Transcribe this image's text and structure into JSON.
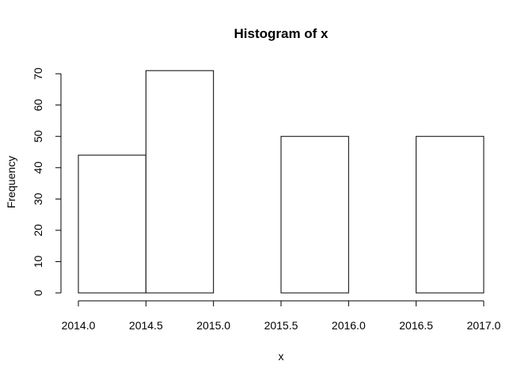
{
  "chart_data": {
    "type": "bar",
    "title": "Histogram of x",
    "xlabel": "x",
    "ylabel": "Frequency",
    "bins": [
      {
        "start": 2014.0,
        "end": 2014.5,
        "count": 44
      },
      {
        "start": 2014.5,
        "end": 2015.0,
        "count": 71
      },
      {
        "start": 2015.0,
        "end": 2015.5,
        "count": 0
      },
      {
        "start": 2015.5,
        "end": 2016.0,
        "count": 50
      },
      {
        "start": 2016.0,
        "end": 2016.5,
        "count": 0
      },
      {
        "start": 2016.5,
        "end": 2017.0,
        "count": 50
      }
    ],
    "xlim": [
      2014.0,
      2017.0
    ],
    "ylim": [
      0,
      71
    ],
    "x_ticks": [
      2014.0,
      2014.5,
      2015.0,
      2015.5,
      2016.0,
      2016.5,
      2017.0
    ],
    "x_tick_labels": [
      "2014.0",
      "2014.5",
      "2015.0",
      "2015.5",
      "2016.0",
      "2016.5",
      "2017.0"
    ],
    "y_ticks": [
      0,
      10,
      20,
      30,
      40,
      50,
      60,
      70
    ],
    "y_tick_labels": [
      "0",
      "10",
      "20",
      "30",
      "40",
      "50",
      "60",
      "70"
    ],
    "grid": false,
    "colors": {
      "bar_fill": "#ffffff",
      "bar_stroke": "#000000"
    }
  }
}
